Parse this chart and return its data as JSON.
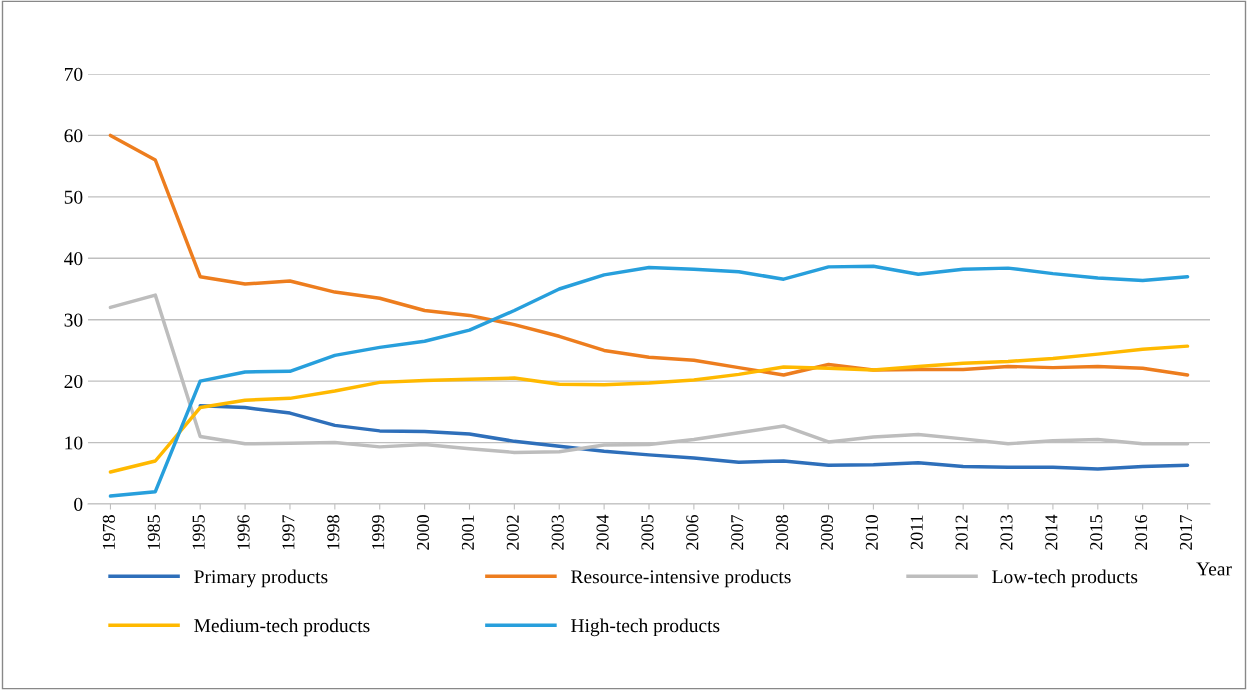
{
  "chart_data": {
    "type": "line",
    "xlabel": "Year",
    "categories": [
      "1978",
      "1985",
      "1995",
      "1996",
      "1997",
      "1998",
      "1999",
      "2000",
      "2001",
      "2002",
      "2003",
      "2004",
      "2005",
      "2006",
      "2007",
      "2008",
      "2009",
      "2010",
      "2011",
      "2012",
      "2013",
      "2014",
      "2015",
      "2016",
      "2017"
    ],
    "series": [
      {
        "name": "Primary products",
        "color": "#2e6fba",
        "values": [
          null,
          null,
          16.0,
          15.7,
          14.8,
          12.8,
          11.9,
          11.8,
          11.4,
          10.2,
          9.4,
          8.6,
          8.0,
          7.5,
          6.8,
          7.0,
          6.3,
          6.4,
          6.7,
          6.1,
          6.0,
          6.0,
          5.7,
          6.1,
          6.3
        ]
      },
      {
        "name": "Resource-intensive products",
        "color": "#ed7d1e",
        "values": [
          60,
          56,
          37,
          35.8,
          36.3,
          34.5,
          33.5,
          31.5,
          30.7,
          29.2,
          27.3,
          25.0,
          23.9,
          23.4,
          22.2,
          21.0,
          22.7,
          21.8,
          21.9,
          21.9,
          22.4,
          22.2,
          22.4,
          22.1,
          21.0
        ]
      },
      {
        "name": "Low-tech products",
        "color": "#bdbdbd",
        "values": [
          32,
          34,
          11,
          9.8,
          9.9,
          10,
          9.3,
          9.7,
          9.0,
          8.4,
          8.5,
          9.6,
          9.7,
          10.5,
          11.6,
          12.7,
          10.1,
          10.9,
          11.3,
          10.6,
          9.8,
          10.3,
          10.5,
          9.8,
          9.8
        ]
      },
      {
        "name": "Medium-tech products",
        "color": "#ffb900",
        "values": [
          5.2,
          7,
          15.7,
          16.9,
          17.2,
          18.4,
          19.8,
          20.1,
          20.3,
          20.5,
          19.5,
          19.4,
          19.7,
          20.2,
          21.1,
          22.3,
          22.1,
          21.8,
          22.4,
          22.9,
          23.2,
          23.7,
          24.4,
          25.2,
          25.7
        ]
      },
      {
        "name": "High-tech products",
        "color": "#279fdc",
        "values": [
          1.3,
          2,
          20,
          21.5,
          21.6,
          24.2,
          25.5,
          26.5,
          28.3,
          31.5,
          35,
          37.3,
          38.5,
          38.2,
          37.8,
          36.6,
          38.6,
          38.7,
          37.4,
          38.2,
          38.4,
          37.5,
          36.8,
          36.4,
          37.0
        ]
      }
    ],
    "ylim": [
      0,
      70
    ],
    "yticks": [
      0,
      10,
      20,
      30,
      40,
      50,
      60,
      70
    ],
    "grid": "y",
    "legend": "bottom",
    "marker": "none",
    "line_style": "solid"
  }
}
